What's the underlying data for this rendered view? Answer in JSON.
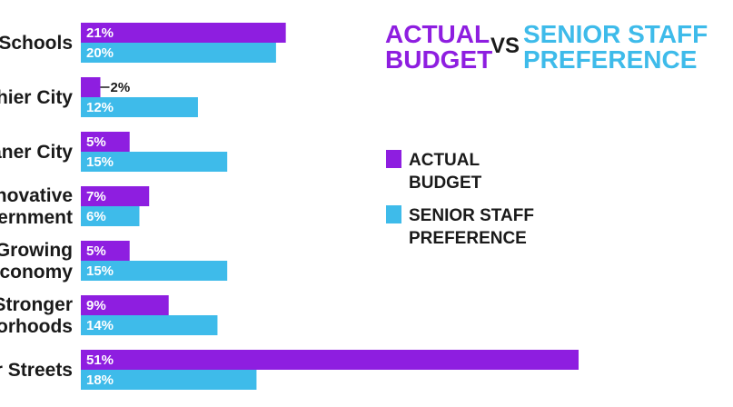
{
  "chart_data": {
    "type": "bar",
    "orientation": "horizontal",
    "title": {
      "actual": [
        "ACTUAL",
        "BUDGET"
      ],
      "vs": "VS",
      "preference": [
        "SENIOR STAFF",
        "PREFERENCE"
      ]
    },
    "categories": [
      [
        "Schools"
      ],
      [
        "hier City"
      ],
      [
        "aner City"
      ],
      [
        "novative",
        "ernment"
      ],
      [
        "Growing",
        "Economy"
      ],
      [
        "Stronger",
        "orhoods"
      ],
      [
        "r Streets"
      ]
    ],
    "series": [
      {
        "name": "ACTUAL BUDGET",
        "legend_lines": [
          "ACTUAL",
          "BUDGET"
        ],
        "color": "#8e1ee0",
        "values": [
          21,
          2,
          5,
          7,
          5,
          9,
          51
        ]
      },
      {
        "name": "SENIOR STAFF PREFERENCE",
        "legend_lines": [
          "SENIOR STAFF",
          "PREFERENCE"
        ],
        "color": "#3ebbea",
        "values": [
          20,
          12,
          15,
          6,
          15,
          14,
          18
        ]
      }
    ],
    "value_suffix": "%",
    "xlim": [
      0,
      51
    ],
    "grid": false,
    "legend_position": "right"
  }
}
